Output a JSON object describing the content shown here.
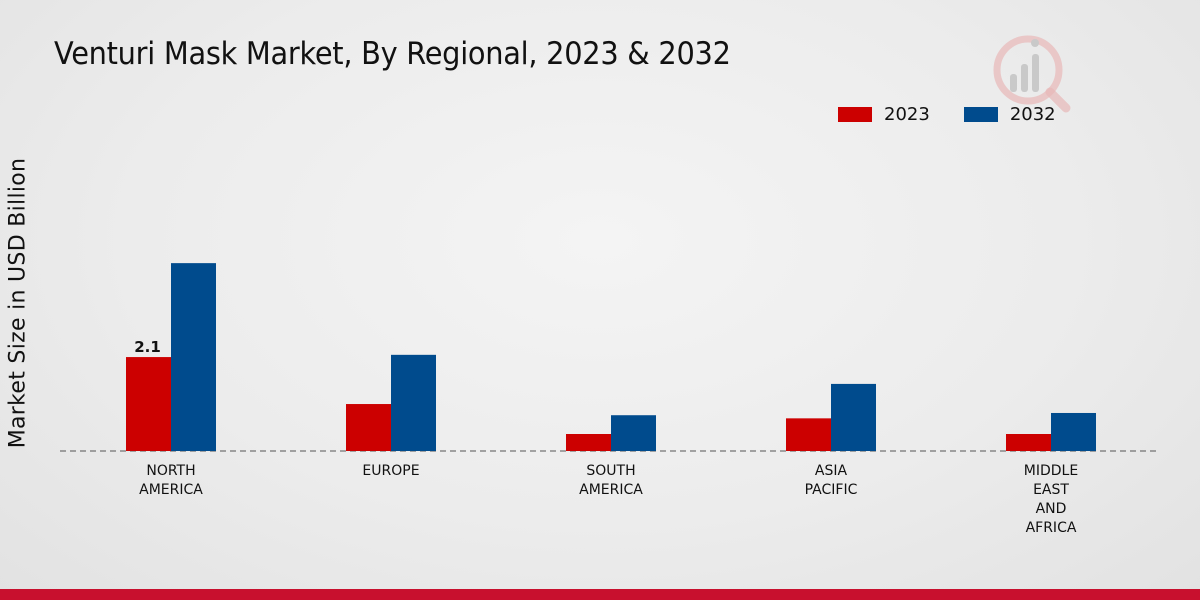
{
  "header": {
    "title": "Venturi Mask Market, By Regional, 2023 & 2032"
  },
  "logo": {
    "icon": "market-research-logo-icon"
  },
  "colors": {
    "series_2023": "#cc0000",
    "series_2032": "#004b8d",
    "accent_bar": "#c8102e"
  },
  "chart_data": {
    "type": "bar",
    "title": "Venturi Mask Market, By Regional, 2023 & 2032",
    "xlabel": "",
    "ylabel": "Market Size in USD Billion",
    "categories": [
      [
        "NORTH",
        "AMERICA"
      ],
      [
        "EUROPE"
      ],
      [
        "SOUTH",
        "AMERICA"
      ],
      [
        "ASIA",
        "PACIFIC"
      ],
      [
        "MIDDLE",
        "EAST",
        "AND",
        "AFRICA"
      ]
    ],
    "series": [
      {
        "name": "2023",
        "color": "#cc0000",
        "values": [
          2.1,
          1.05,
          0.38,
          0.73,
          0.38
        ]
      },
      {
        "name": "2032",
        "color": "#004b8d",
        "values": [
          4.2,
          2.15,
          0.8,
          1.5,
          0.85
        ]
      }
    ],
    "data_labels": [
      {
        "series": 0,
        "index": 0,
        "text": "2.1"
      }
    ],
    "ylim": [
      0,
      7.4
    ],
    "grid": false,
    "legend": "top-right",
    "baseline": "dashed"
  }
}
